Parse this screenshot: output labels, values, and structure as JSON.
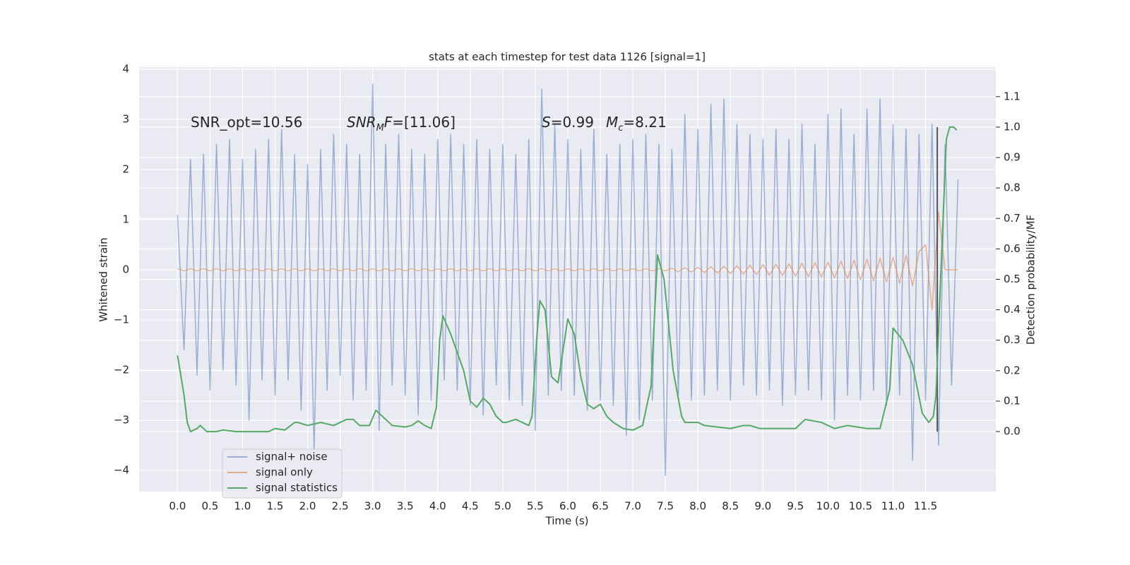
{
  "chart_data": {
    "type": "line",
    "title": "stats at each timestep for test data 1126 [signal=1]",
    "xlabel": "Time (s)",
    "ylabel": "Whitened strain",
    "y2label": "Detection probability/MF",
    "annotations": [
      [
        {
          "text": "SNR_opt=10.56"
        }
      ],
      [
        {
          "text": "SNR",
          "style": "italic"
        },
        {
          "text": "M",
          "style": "sub"
        },
        {
          "text": "F",
          "style": "italic"
        },
        {
          "text": "=[11.06]"
        }
      ],
      [
        {
          "text": "S",
          "style": "italic"
        },
        {
          "text": "=0.99"
        }
      ],
      [
        {
          "text": "M",
          "style": "italic"
        },
        {
          "text": "c",
          "style": "sub"
        },
        {
          "text": "=8.21"
        }
      ]
    ],
    "x": [
      0,
      0.1,
      0.2,
      0.3,
      0.4,
      0.5,
      0.6,
      0.7,
      0.8,
      0.9,
      1.0,
      1.1,
      1.2,
      1.3,
      1.4,
      1.5,
      1.6,
      1.7,
      1.8,
      1.9,
      2.0,
      2.1,
      2.2,
      2.3,
      2.4,
      2.5,
      2.6,
      2.7,
      2.8,
      2.9,
      3.0,
      3.1,
      3.2,
      3.3,
      3.4,
      3.5,
      3.6,
      3.7,
      3.8,
      3.9,
      4.0,
      4.1,
      4.2,
      4.3,
      4.4,
      4.5,
      4.6,
      4.7,
      4.8,
      4.9,
      5.0,
      5.1,
      5.2,
      5.3,
      5.4,
      5.5,
      5.6,
      5.7,
      5.8,
      5.9,
      6.0,
      6.1,
      6.2,
      6.3,
      6.4,
      6.5,
      6.6,
      6.7,
      6.8,
      6.9,
      7.0,
      7.1,
      7.2,
      7.3,
      7.4,
      7.5,
      7.6,
      7.7,
      7.8,
      7.9,
      8.0,
      8.1,
      8.2,
      8.3,
      8.4,
      8.5,
      8.6,
      8.7,
      8.8,
      8.9,
      9.0,
      9.1,
      9.2,
      9.3,
      9.4,
      9.5,
      9.6,
      9.7,
      9.8,
      9.9,
      10.0,
      10.1,
      10.2,
      10.3,
      10.4,
      10.5,
      10.6,
      10.7,
      10.8,
      10.9,
      11.0,
      11.1,
      11.2,
      11.3,
      11.4,
      11.5,
      11.6,
      11.7,
      11.8,
      11.9,
      12.0
    ],
    "series": [
      {
        "name": "signal+ noise",
        "color": "#4c72b0",
        "opacity": 0.5,
        "values": [
          1.1,
          -1.6,
          2.2,
          -2.1,
          2.3,
          -2.4,
          2.5,
          -2.0,
          2.6,
          -2.3,
          2.2,
          -3.0,
          2.4,
          -2.2,
          2.6,
          -2.5,
          2.8,
          -2.2,
          2.3,
          -2.8,
          2.1,
          -3.6,
          2.4,
          -2.4,
          2.7,
          -2.1,
          2.5,
          -2.6,
          2.3,
          -2.4,
          3.7,
          -3.2,
          2.5,
          -2.3,
          2.7,
          -2.5,
          2.4,
          -2.9,
          2.3,
          -2.6,
          2.6,
          -2.2,
          2.7,
          -2.4,
          2.5,
          -2.7,
          2.6,
          -2.9,
          2.4,
          -2.3,
          2.5,
          -2.6,
          2.3,
          -2.7,
          2.6,
          -3.2,
          3.6,
          -2.5,
          2.9,
          -2.4,
          2.6,
          -2.5,
          2.4,
          -2.8,
          2.8,
          -2.6,
          2.3,
          -2.7,
          2.5,
          -3.3,
          2.6,
          -3.0,
          2.7,
          -2.6,
          2.5,
          -4.1,
          2.4,
          -2.5,
          3.1,
          -2.6,
          2.8,
          -2.5,
          3.3,
          -2.4,
          3.4,
          -2.6,
          2.9,
          -2.3,
          2.7,
          -2.5,
          2.6,
          -2.4,
          2.8,
          -2.7,
          2.6,
          -2.5,
          2.9,
          -2.4,
          2.5,
          -2.6,
          3.1,
          -3.0,
          3.2,
          -2.5,
          2.7,
          -2.6,
          3.2,
          -2.4,
          3.4,
          -2.7,
          2.9,
          -2.5,
          2.8,
          -3.8,
          2.7,
          -2.6,
          2.9,
          -3.5,
          2.5,
          -2.3,
          1.8
        ]
      },
      {
        "name": "signal only",
        "color": "#dd8452",
        "opacity": 0.6,
        "values": [
          0.02,
          -0.02,
          0.02,
          -0.02,
          0.02,
          -0.02,
          0.02,
          -0.02,
          0.02,
          -0.02,
          0.02,
          -0.02,
          0.02,
          -0.02,
          0.02,
          -0.02,
          0.02,
          -0.02,
          0.02,
          -0.02,
          0.02,
          -0.02,
          0.02,
          -0.02,
          0.02,
          -0.02,
          0.02,
          -0.02,
          0.02,
          -0.02,
          0.02,
          -0.02,
          0.02,
          -0.02,
          0.02,
          -0.02,
          0.02,
          -0.02,
          0.02,
          -0.02,
          0.02,
          -0.02,
          0.02,
          -0.02,
          0.02,
          -0.02,
          0.02,
          -0.02,
          0.02,
          -0.02,
          0.02,
          -0.02,
          0.02,
          -0.02,
          0.02,
          -0.02,
          0.02,
          -0.02,
          0.02,
          -0.02,
          0.02,
          -0.02,
          0.02,
          -0.02,
          0.02,
          -0.02,
          0.02,
          -0.02,
          0.02,
          -0.02,
          0.02,
          -0.02,
          0.02,
          -0.02,
          0.02,
          -0.02,
          0.03,
          -0.035,
          0.04,
          -0.045,
          0.05,
          -0.055,
          0.06,
          -0.065,
          0.07,
          -0.075,
          0.08,
          -0.085,
          0.09,
          -0.095,
          0.1,
          -0.105,
          0.11,
          -0.115,
          0.12,
          -0.125,
          0.13,
          -0.135,
          0.14,
          -0.145,
          0.15,
          -0.16,
          0.17,
          -0.18,
          0.19,
          -0.2,
          0.21,
          -0.22,
          0.23,
          -0.24,
          0.25,
          -0.27,
          0.29,
          -0.32,
          0.36,
          0.5,
          -0.8,
          1.15,
          0,
          0,
          0
        ]
      },
      {
        "name": "signal statistics",
        "color": "#55a868",
        "opacity": 1,
        "axis": "y2",
        "x": [
          0,
          0.1,
          0.15,
          0.2,
          0.3,
          0.35,
          0.45,
          0.6,
          0.7,
          0.9,
          1.0,
          1.2,
          1.4,
          1.5,
          1.65,
          1.8,
          1.85,
          2.0,
          2.2,
          2.4,
          2.6,
          2.7,
          2.8,
          2.95,
          3.05,
          3.2,
          3.3,
          3.5,
          3.6,
          3.7,
          3.8,
          3.9,
          3.98,
          4.03,
          4.08,
          4.2,
          4.4,
          4.5,
          4.6,
          4.7,
          4.8,
          4.9,
          5.0,
          5.05,
          5.2,
          5.3,
          5.4,
          5.45,
          5.52,
          5.57,
          5.65,
          5.75,
          5.85,
          5.95,
          6.0,
          6.1,
          6.2,
          6.3,
          6.4,
          6.5,
          6.6,
          6.7,
          6.85,
          7.0,
          7.15,
          7.28,
          7.38,
          7.48,
          7.62,
          7.75,
          7.8,
          8.0,
          8.1,
          8.3,
          8.5,
          8.7,
          8.8,
          8.95,
          9.2,
          9.5,
          9.65,
          9.9,
          10.1,
          10.3,
          10.6,
          10.8,
          10.95,
          11.0,
          11.15,
          11.3,
          11.45,
          11.55,
          11.62,
          11.66,
          11.75,
          11.82,
          11.87,
          11.93,
          11.98
        ],
        "values": [
          0.25,
          0.12,
          0.03,
          0.0,
          0.01,
          0.02,
          0.0,
          0.0,
          0.005,
          0.0,
          0.0,
          0.0,
          0.0,
          0.01,
          0.005,
          0.03,
          0.03,
          0.02,
          0.03,
          0.02,
          0.04,
          0.04,
          0.02,
          0.02,
          0.07,
          0.04,
          0.02,
          0.015,
          0.02,
          0.035,
          0.02,
          0.01,
          0.08,
          0.3,
          0.38,
          0.32,
          0.2,
          0.1,
          0.08,
          0.11,
          0.09,
          0.05,
          0.03,
          0.03,
          0.04,
          0.03,
          0.02,
          0.05,
          0.3,
          0.43,
          0.4,
          0.18,
          0.16,
          0.3,
          0.37,
          0.32,
          0.18,
          0.09,
          0.075,
          0.09,
          0.05,
          0.03,
          0.01,
          0.005,
          0.02,
          0.15,
          0.58,
          0.5,
          0.2,
          0.05,
          0.03,
          0.03,
          0.02,
          0.015,
          0.01,
          0.02,
          0.02,
          0.01,
          0.01,
          0.01,
          0.04,
          0.03,
          0.01,
          0.02,
          0.01,
          0.01,
          0.14,
          0.34,
          0.3,
          0.22,
          0.06,
          0.03,
          0.05,
          0.12,
          0.6,
          0.96,
          1.0,
          1.0,
          0.99
        ]
      }
    ],
    "vline": {
      "x": 11.68,
      "y2": [
        0,
        1.0
      ],
      "color": "#555555"
    },
    "xlim": [
      -0.59,
      12.58
    ],
    "xticks": [
      {
        "value": 0,
        "label": "0.0"
      },
      0.5,
      {
        "value": 1,
        "label": "1.0"
      },
      1.5,
      {
        "value": 2,
        "label": "2.0"
      },
      2.5,
      {
        "value": 3,
        "label": "3.0"
      },
      3.5,
      {
        "value": 4,
        "label": "4.0"
      },
      4.5,
      {
        "value": 5,
        "label": "5.0"
      },
      5.5,
      {
        "value": 6,
        "label": "6.0"
      },
      6.5,
      {
        "value": 7,
        "label": "7.0"
      },
      7.5,
      {
        "value": 8,
        "label": "8.0"
      },
      8.5,
      {
        "value": 9,
        "label": "9.0"
      },
      9.5,
      {
        "value": 10,
        "label": "10.0"
      },
      10.5,
      {
        "value": 11,
        "label": "11.0"
      },
      11.5
    ],
    "ylim": [
      -4.42,
      4.04
    ],
    "yticks": [
      {
        "value": -4,
        "label": "−4"
      },
      {
        "value": -3,
        "label": "−3"
      },
      {
        "value": -2,
        "label": "−2"
      },
      {
        "value": -1,
        "label": "−1"
      },
      0,
      1,
      2,
      3,
      4
    ],
    "y2lim": [
      -0.197,
      1.197
    ],
    "y2ticks": [
      {
        "value": 0,
        "label": "0.0"
      },
      0.1,
      0.2,
      0.3,
      0.4,
      0.5,
      0.6,
      0.7,
      0.8,
      0.9,
      {
        "value": 1,
        "label": "1.0"
      },
      1.1
    ],
    "grid": true,
    "legend_loc": "lower left"
  }
}
